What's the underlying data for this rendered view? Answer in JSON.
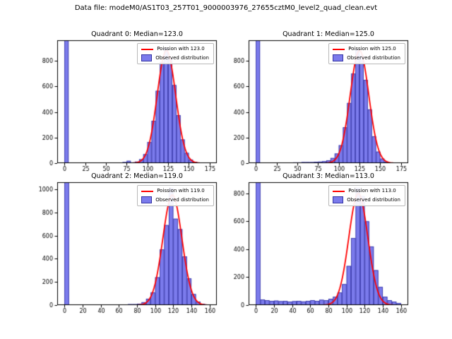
{
  "suptitle": "Data file: modeM0/AS1T03_257T01_9000003976_27655cztM0_level2_quad_clean.evt",
  "colors": {
    "curve": "#ff0000",
    "bar_fill": "#7b7bec",
    "bar_edge": "#3333a2",
    "legend_border": "#b9b9b9",
    "axis": "#000000"
  },
  "chart_data": {
    "type": "bar",
    "note": "2x2 grid of histograms with Poisson fit curves",
    "subplots": [
      {
        "title": "Quadrant 0: Median=123.0",
        "median": 123.0,
        "legend": {
          "curve": "Poission with 123.0",
          "hist": "Observed distribution"
        },
        "xlim": [
          -8.75,
          183.75
        ],
        "ylim": [
          0,
          960
        ],
        "xticks": [
          0,
          25,
          50,
          75,
          100,
          125,
          150,
          175
        ],
        "yticks": [
          0,
          200,
          400,
          600,
          800
        ],
        "bin_start": 0,
        "bin_width": 5,
        "counts": [
          5000,
          0,
          0,
          0,
          0,
          0,
          0,
          0,
          0,
          0,
          0,
          0,
          0,
          0,
          8,
          18,
          6,
          12,
          30,
          70,
          165,
          330,
          565,
          790,
          900,
          820,
          610,
          375,
          185,
          80,
          28,
          10,
          4,
          0,
          0
        ],
        "curve": {
          "mu": 123.0,
          "sigma": 11.1,
          "amplitude": 880
        }
      },
      {
        "title": "Quadrant 1: Median=125.0",
        "median": 125.0,
        "legend": {
          "curve": "Poission with 125.0",
          "hist": "Observed distribution"
        },
        "xlim": [
          -8.75,
          183.75
        ],
        "ylim": [
          0,
          960
        ],
        "xticks": [
          0,
          25,
          50,
          75,
          100,
          125,
          150,
          175
        ],
        "yticks": [
          0,
          200,
          400,
          600,
          800
        ],
        "bin_start": 0,
        "bin_width": 5,
        "counts": [
          5000,
          0,
          0,
          0,
          0,
          0,
          0,
          0,
          0,
          6,
          6,
          8,
          8,
          8,
          10,
          12,
          15,
          22,
          40,
          75,
          140,
          280,
          470,
          700,
          890,
          840,
          650,
          420,
          210,
          90,
          35,
          12,
          4,
          0,
          0
        ],
        "curve": {
          "mu": 125.0,
          "sigma": 11.2,
          "amplitude": 880
        }
      },
      {
        "title": "Quadrant 2: Median=119.0",
        "median": 119.0,
        "legend": {
          "curve": "Poission with 119.0",
          "hist": "Observed distribution"
        },
        "xlim": [
          -8,
          168
        ],
        "ylim": [
          0,
          1060
        ],
        "xticks": [
          0,
          20,
          40,
          60,
          80,
          100,
          120,
          140,
          160
        ],
        "yticks": [
          0,
          200,
          400,
          600,
          800,
          1000
        ],
        "bin_start": 0,
        "bin_width": 5,
        "counts": [
          5000,
          0,
          0,
          0,
          0,
          0,
          0,
          0,
          0,
          0,
          0,
          0,
          5,
          5,
          8,
          8,
          12,
          25,
          55,
          110,
          240,
          480,
          690,
          1010,
          745,
          655,
          420,
          230,
          95,
          30,
          10,
          3
        ],
        "curve": {
          "mu": 119.0,
          "sigma": 10.5,
          "amplitude": 950
        }
      },
      {
        "title": "Quadrant 3: Median=113.0",
        "median": 113.0,
        "legend": {
          "curve": "Poission with 113.0",
          "hist": "Observed distribution"
        },
        "xlim": [
          -8,
          168
        ],
        "ylim": [
          0,
          880
        ],
        "xticks": [
          0,
          20,
          40,
          60,
          80,
          100,
          120,
          140,
          160
        ],
        "yticks": [
          0,
          200,
          400,
          600,
          800
        ],
        "bin_start": 0,
        "bin_width": 5,
        "counts": [
          5000,
          40,
          35,
          30,
          32,
          28,
          30,
          25,
          28,
          30,
          26,
          30,
          35,
          30,
          38,
          35,
          45,
          60,
          90,
          150,
          280,
          480,
          840,
          780,
          600,
          420,
          250,
          130,
          60,
          35,
          25,
          15
        ],
        "curve": {
          "mu": 113.0,
          "sigma": 10.5,
          "amplitude": 800
        }
      }
    ]
  }
}
